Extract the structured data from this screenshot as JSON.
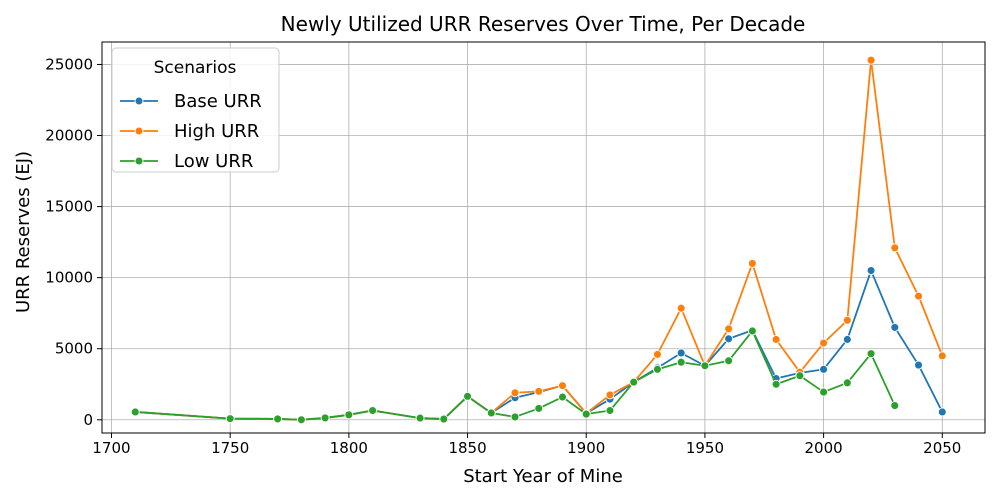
{
  "chart_data": {
    "type": "line",
    "title": "Newly Utilized URR Reserves Over Time, Per Decade",
    "xlabel": "Start Year of Mine",
    "ylabel": "URR Reserves (EJ)",
    "xlim": [
      1696,
      2068
    ],
    "ylim": [
      -930,
      26580
    ],
    "xticks": [
      1700,
      1750,
      1800,
      1850,
      1900,
      1950,
      2000,
      2050
    ],
    "yticks": [
      0,
      5000,
      10000,
      15000,
      20000,
      25000
    ],
    "grid": true,
    "legend": {
      "title": "Scenarios",
      "placement": "upper-left"
    },
    "series": [
      {
        "name": "Base URR",
        "color": "#1f77b4",
        "points": [
          [
            1710,
            550
          ],
          [
            1750,
            80
          ],
          [
            1770,
            60
          ],
          [
            1780,
            0
          ],
          [
            1790,
            130
          ],
          [
            1800,
            350
          ],
          [
            1810,
            650
          ],
          [
            1830,
            120
          ],
          [
            1840,
            50
          ],
          [
            1850,
            1650
          ],
          [
            1860,
            480
          ],
          [
            1870,
            1550
          ],
          [
            1880,
            1950
          ],
          [
            1890,
            2400
          ],
          [
            1900,
            450
          ],
          [
            1910,
            1450
          ],
          [
            1920,
            2650
          ],
          [
            1930,
            3650
          ],
          [
            1940,
            4700
          ],
          [
            1950,
            3800
          ],
          [
            1960,
            5700
          ],
          [
            1970,
            6300
          ],
          [
            1980,
            2900
          ],
          [
            1990,
            3300
          ],
          [
            2000,
            3550
          ],
          [
            2010,
            5650
          ],
          [
            2020,
            10500
          ],
          [
            2030,
            6500
          ],
          [
            2040,
            3850
          ],
          [
            2050,
            550
          ]
        ]
      },
      {
        "name": "High URR",
        "color": "#ff7f0e",
        "points": [
          [
            1710,
            550
          ],
          [
            1750,
            80
          ],
          [
            1770,
            60
          ],
          [
            1780,
            0
          ],
          [
            1790,
            130
          ],
          [
            1800,
            350
          ],
          [
            1810,
            650
          ],
          [
            1830,
            120
          ],
          [
            1840,
            50
          ],
          [
            1850,
            1650
          ],
          [
            1860,
            480
          ],
          [
            1870,
            1900
          ],
          [
            1880,
            2000
          ],
          [
            1890,
            2400
          ],
          [
            1900,
            450
          ],
          [
            1910,
            1750
          ],
          [
            1920,
            2650
          ],
          [
            1930,
            4600
          ],
          [
            1940,
            7850
          ],
          [
            1950,
            3800
          ],
          [
            1960,
            6400
          ],
          [
            1970,
            11000
          ],
          [
            1980,
            5650
          ],
          [
            1990,
            3350
          ],
          [
            2000,
            5400
          ],
          [
            2010,
            7000
          ],
          [
            2020,
            25300
          ],
          [
            2030,
            12100
          ],
          [
            2040,
            8700
          ],
          [
            2050,
            4500
          ]
        ]
      },
      {
        "name": "Low URR",
        "color": "#2ca02c",
        "points": [
          [
            1710,
            550
          ],
          [
            1750,
            80
          ],
          [
            1770,
            60
          ],
          [
            1780,
            0
          ],
          [
            1790,
            130
          ],
          [
            1800,
            350
          ],
          [
            1810,
            650
          ],
          [
            1830,
            120
          ],
          [
            1840,
            50
          ],
          [
            1850,
            1650
          ],
          [
            1860,
            480
          ],
          [
            1870,
            200
          ],
          [
            1880,
            800
          ],
          [
            1890,
            1600
          ],
          [
            1900,
            400
          ],
          [
            1910,
            650
          ],
          [
            1920,
            2650
          ],
          [
            1930,
            3550
          ],
          [
            1940,
            4050
          ],
          [
            1950,
            3800
          ],
          [
            1960,
            4150
          ],
          [
            1970,
            6250
          ],
          [
            1980,
            2500
          ],
          [
            1990,
            3100
          ],
          [
            2000,
            1950
          ],
          [
            2010,
            2600
          ],
          [
            2020,
            4650
          ],
          [
            2030,
            1000
          ]
        ]
      }
    ]
  }
}
